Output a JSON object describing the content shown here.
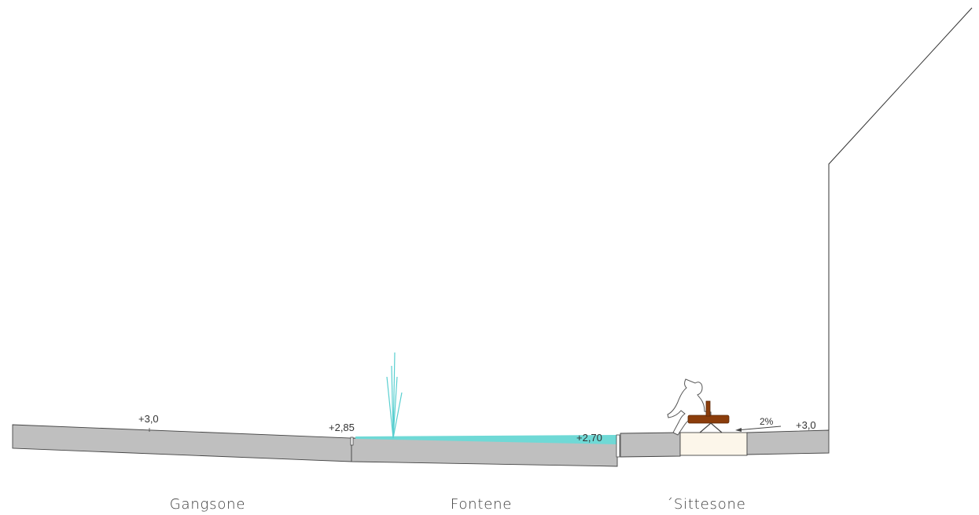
{
  "elevations": {
    "walk_zone": "+3,0",
    "fountain_start": "+2,85",
    "fountain_end": "+2,70",
    "seating_zone": "+3,0"
  },
  "slope_label": "2%",
  "zones": {
    "walk": "Gangsone",
    "fountain": "Fontene",
    "seating": "´Sittesone"
  },
  "colors": {
    "ground": "#bfbfbf",
    "water": "#6fd9d6",
    "jet": "#59cfd0",
    "sand": "#fcf6ea",
    "bench": "#8b3d0b",
    "outline": "#444444"
  }
}
